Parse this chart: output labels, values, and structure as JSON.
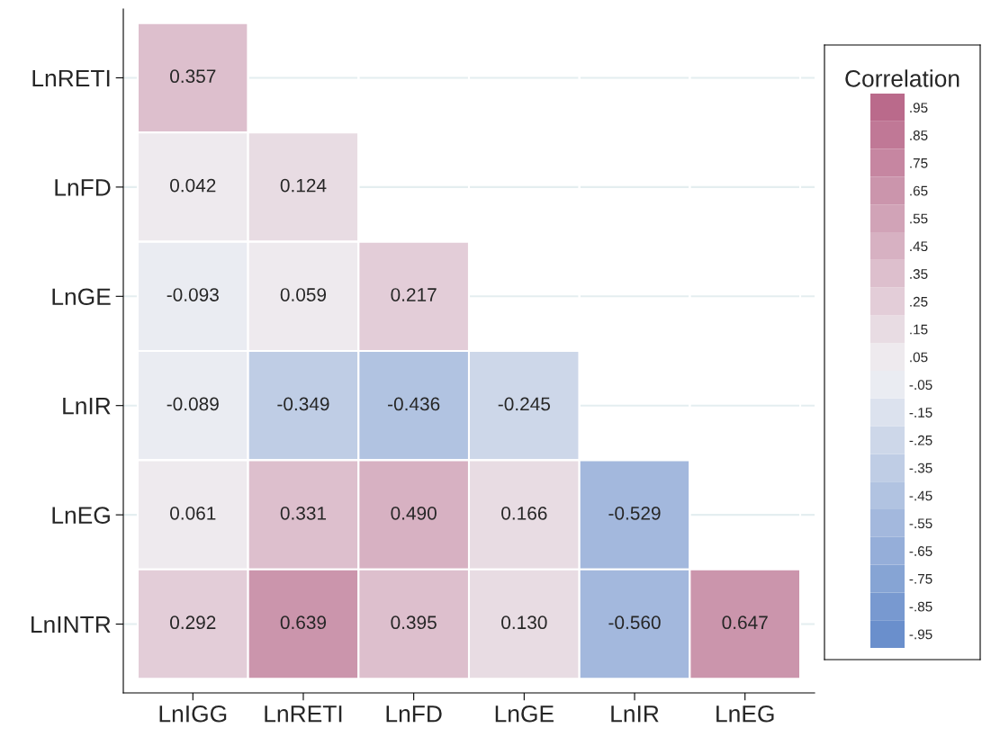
{
  "chart_data": {
    "type": "heatmap",
    "legend_title": "Correlation",
    "categories": [
      "LnIGG",
      "LnRETI",
      "LnFD",
      "LnGE",
      "LnIR",
      "LnEG"
    ],
    "y_categories": [
      "LnRETI",
      "LnFD",
      "LnGE",
      "LnIR",
      "LnEG",
      "LnINTR"
    ],
    "cells": [
      [
        0.357,
        null,
        null,
        null,
        null,
        null
      ],
      [
        0.042,
        0.124,
        null,
        null,
        null,
        null
      ],
      [
        -0.093,
        0.059,
        0.217,
        null,
        null,
        null
      ],
      [
        -0.089,
        -0.349,
        -0.436,
        -0.245,
        null,
        null
      ],
      [
        0.061,
        0.331,
        0.49,
        0.166,
        -0.529,
        null
      ],
      [
        0.292,
        0.639,
        0.395,
        0.13,
        -0.56,
        0.647
      ]
    ],
    "cell_labels": [
      [
        "0.357",
        null,
        null,
        null,
        null,
        null
      ],
      [
        "0.042",
        "0.124",
        null,
        null,
        null,
        null
      ],
      [
        "-0.093",
        "0.059",
        "0.217",
        null,
        null,
        null
      ],
      [
        "-0.089",
        "-0.349",
        "-0.436",
        "-0.245",
        null,
        null
      ],
      [
        "0.061",
        "0.331",
        "0.490",
        "0.166",
        "-0.529",
        null
      ],
      [
        "0.292",
        "0.639",
        "0.395",
        "0.130",
        "-0.560",
        "0.647"
      ]
    ],
    "colors": [
      "#6a8fcc",
      "#f1f1f4",
      "#ba6a8b"
    ],
    "clim": [
      -1,
      1
    ],
    "cticks": [
      {
        "value": -0.95,
        "label": "-.95"
      },
      {
        "value": -0.85,
        "label": "-.85"
      },
      {
        "value": -0.75,
        "label": "-.75"
      },
      {
        "value": -0.65,
        "label": "-.65"
      },
      {
        "value": -0.55,
        "label": "-.55"
      },
      {
        "value": -0.45,
        "label": "-.45"
      },
      {
        "value": -0.35,
        "label": "-.35"
      },
      {
        "value": -0.25,
        "label": "-.25"
      },
      {
        "value": -0.15,
        "label": "-.15"
      },
      {
        "value": -0.05,
        "label": "-.05"
      },
      {
        "value": 0.05,
        "label": ".05"
      },
      {
        "value": 0.15,
        "label": ".15"
      },
      {
        "value": 0.25,
        "label": ".25"
      },
      {
        "value": 0.35,
        "label": ".35"
      },
      {
        "value": 0.45,
        "label": ".45"
      },
      {
        "value": 0.55,
        "label": ".55"
      },
      {
        "value": 0.65,
        "label": ".65"
      },
      {
        "value": 0.75,
        "label": ".75"
      },
      {
        "value": 0.85,
        "label": ".85"
      },
      {
        "value": 0.95,
        "label": ".95"
      }
    ],
    "grid": "y"
  }
}
